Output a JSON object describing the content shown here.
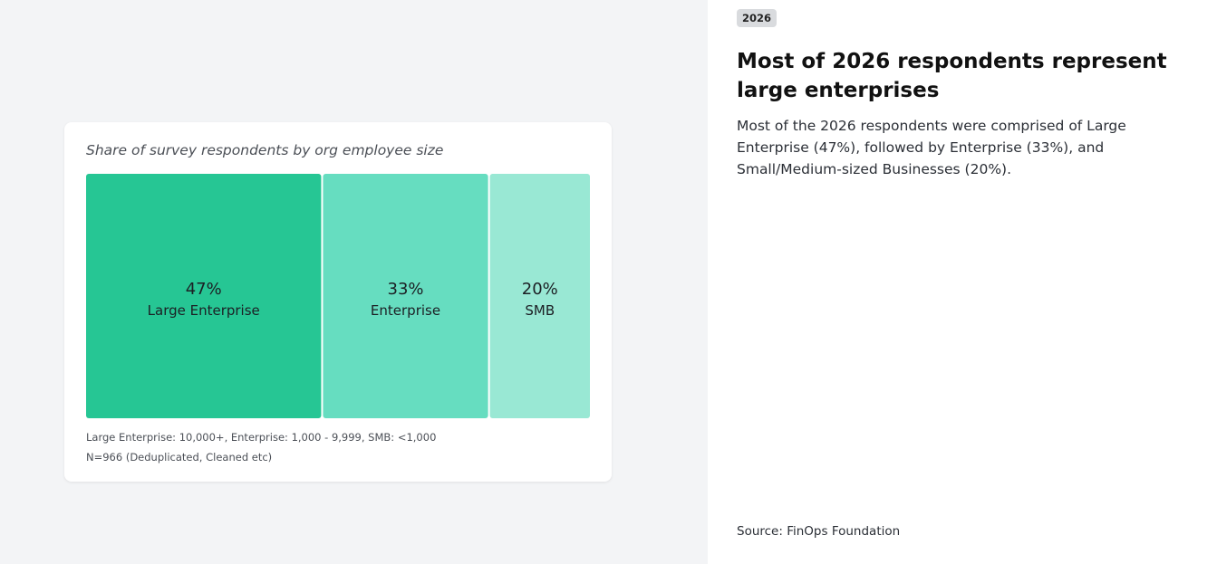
{
  "chart_title": "Share of survey respondents by org employee size",
  "footnotes": {
    "line1": "Large Enterprise: 10,000+, Enterprise: 1,000 - 9,999, SMB: <1,000",
    "line2": "N=966 (Deduplicated, Cleaned etc)"
  },
  "sidebar": {
    "year_badge": "2026",
    "headline": "Most of 2026 respondents represent large enterprises",
    "description": "Most of the 2026 respondents were comprised of Large Enterprise (47%), followed by Enterprise (33%), and Small/Medium-sized Businesses (20%).",
    "source": "Source: FinOps Foundation"
  },
  "chart_data": {
    "type": "treemap",
    "title": "Share of survey respondents by org employee size",
    "categories": [
      "Large Enterprise",
      "Enterprise",
      "SMB"
    ],
    "values": [
      47,
      33,
      20
    ],
    "value_labels": [
      "47%",
      "33%",
      "20%"
    ],
    "colors": [
      "#26c694",
      "#66ddc0",
      "#99e8d4"
    ]
  }
}
